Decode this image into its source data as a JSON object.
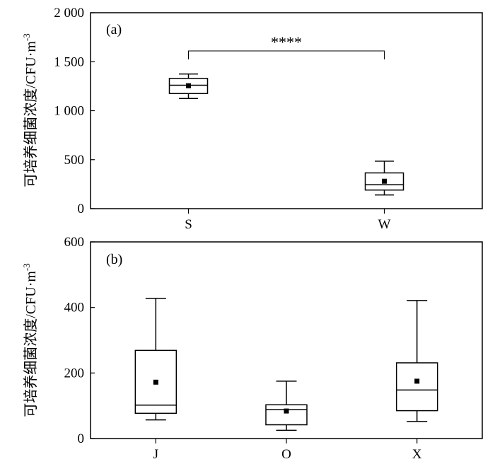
{
  "chart_data": [
    {
      "type": "box",
      "panel_label": "(a)",
      "ylabel": "可培养细菌浓度/CFU·m",
      "ylabel_superscript": "-3",
      "ylim": [
        0,
        2000
      ],
      "yticks": [
        0,
        500,
        1000,
        1500,
        2000
      ],
      "ytick_labels": [
        "0",
        "500",
        "1 000",
        "1 500",
        "2 000"
      ],
      "categories": [
        "S",
        "W"
      ],
      "boxes": [
        {
          "name": "S",
          "min": 1125,
          "q1": 1175,
          "median": 1260,
          "q3": 1330,
          "max": 1375,
          "mean": 1255
        },
        {
          "name": "W",
          "min": 140,
          "q1": 190,
          "median": 245,
          "q3": 365,
          "max": 485,
          "mean": 280
        }
      ],
      "significance": {
        "from": "S",
        "to": "W",
        "label": "****",
        "y": 1610
      }
    },
    {
      "type": "box",
      "panel_label": "(b)",
      "ylabel": "可培养细菌浓度/CFU·m",
      "ylabel_superscript": "-3",
      "ylim": [
        0,
        600
      ],
      "yticks": [
        0,
        200,
        400,
        600
      ],
      "ytick_labels": [
        "0",
        "200",
        "400",
        "600"
      ],
      "categories": [
        "J",
        "O",
        "X"
      ],
      "boxes": [
        {
          "name": "J",
          "min": 57,
          "q1": 77,
          "median": 102,
          "q3": 269,
          "max": 428,
          "mean": 172
        },
        {
          "name": "O",
          "min": 25,
          "q1": 42,
          "median": 88,
          "q3": 103,
          "max": 175,
          "mean": 84
        },
        {
          "name": "X",
          "min": 52,
          "q1": 85,
          "median": 148,
          "q3": 231,
          "max": 421,
          "mean": 175
        }
      ]
    }
  ]
}
